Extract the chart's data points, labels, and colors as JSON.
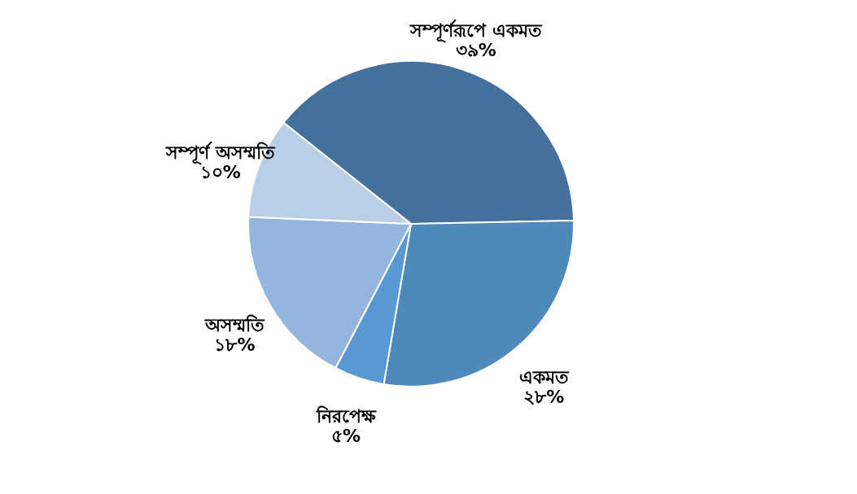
{
  "chart_data": {
    "type": "pie",
    "categories": [
      "সম্পূর্ণরূপে একমত",
      "একমত",
      "নিরপেক্ষ",
      "অসম্মতি",
      "সম্পূর্ণ অসম্মতি"
    ],
    "values": [
      39,
      28,
      5,
      18,
      10
    ],
    "colors": [
      "#44719c",
      "#4f88bb",
      "#5898d4",
      "#95b6dc",
      "#b9cfe7"
    ],
    "value_labels": [
      "৩৯%",
      "২৮%",
      "৫%",
      "১৮%",
      "১০%"
    ],
    "legend": false
  }
}
